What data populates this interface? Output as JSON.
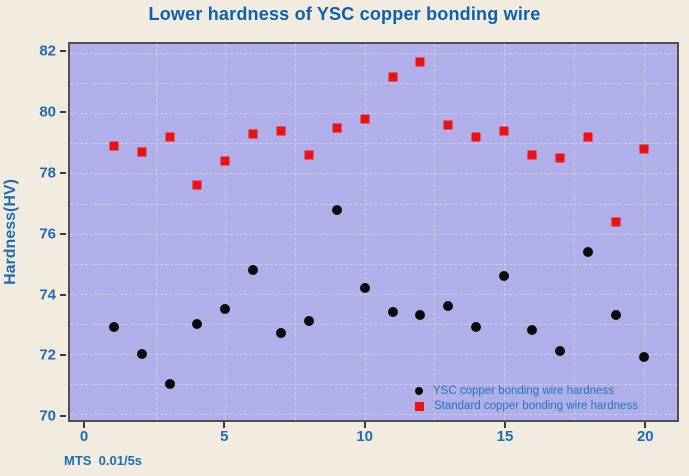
{
  "page": {
    "footnote": "MTS  0.01/5s"
  },
  "colors": {
    "page_bg": "#f1ecdf",
    "plot_bg": "#b1afe9",
    "title_text": "#0d60b3",
    "tick_text": "#1f6cb5",
    "legend_text": "#2176c0",
    "marker_black": "#0a0a0a",
    "marker_red": "#ee1111",
    "plot_border": "#4f4f5a",
    "grid_color": "#d4d4e2"
  },
  "chart_data": {
    "type": "scatter",
    "title": "Lower hardness of YSC copper bonding wire",
    "xlabel": "",
    "ylabel": "Hardness(HV)",
    "footnote": "MTS  0.01/5s",
    "x": [
      1,
      2,
      3,
      4,
      5,
      6,
      7,
      8,
      9,
      10,
      11,
      12,
      13,
      14,
      15,
      16,
      17,
      18,
      19,
      20
    ],
    "series": [
      {
        "name": "YSC copper bonding wire hardness",
        "marker": "circle",
        "color": "#0a0a0a",
        "values": [
          72.9,
          72.0,
          71.0,
          73.0,
          73.5,
          74.8,
          72.7,
          73.1,
          76.8,
          74.2,
          73.4,
          73.3,
          73.6,
          72.9,
          74.6,
          72.8,
          72.1,
          75.4,
          73.3,
          71.9
        ]
      },
      {
        "name": "Standard copper bonding wire hardness",
        "marker": "square",
        "color": "#ee1111",
        "values": [
          78.9,
          78.7,
          79.2,
          77.6,
          78.4,
          79.3,
          79.4,
          78.6,
          79.5,
          79.8,
          81.2,
          81.7,
          79.6,
          79.2,
          79.4,
          78.6,
          78.5,
          79.2,
          76.4,
          78.8
        ]
      }
    ],
    "xlim": [
      -0.57,
      21.2
    ],
    "ylim": [
      69.81,
      82.3
    ],
    "x_ticks": [
      0,
      5,
      10,
      15,
      20
    ],
    "y_ticks": [
      70,
      72,
      74,
      76,
      78,
      80,
      82
    ],
    "grid_x_values": [
      2.5,
      5,
      7.5,
      10,
      12.5,
      15,
      17.5,
      20
    ],
    "grid_y_values": [
      70,
      71,
      72,
      73,
      74,
      75,
      76,
      77,
      78,
      79,
      80,
      81,
      82
    ],
    "grid": true,
    "legend_position": "bottom-right"
  }
}
